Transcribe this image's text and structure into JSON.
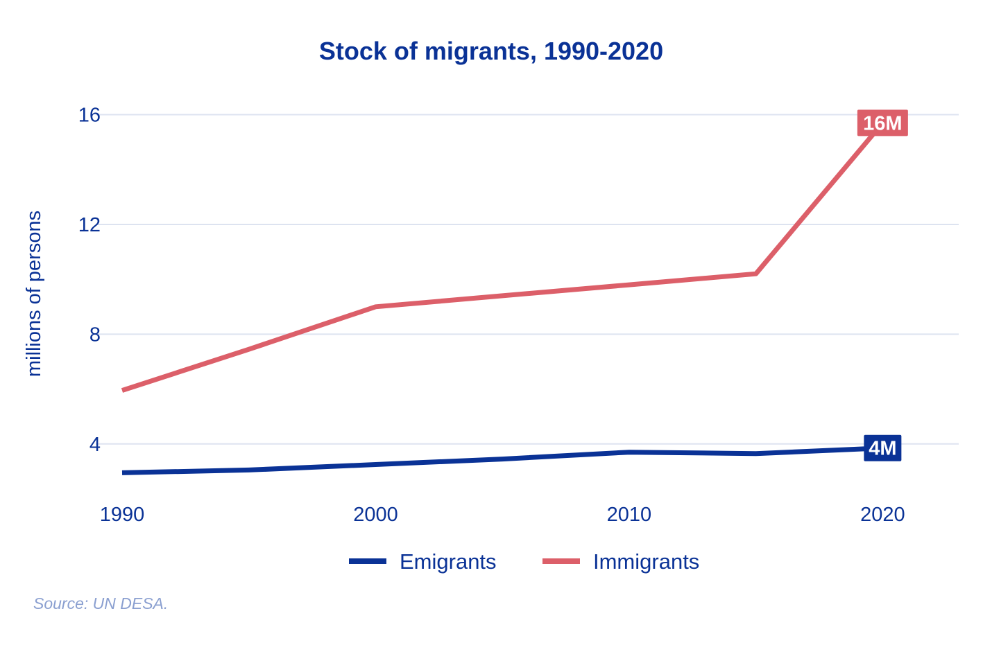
{
  "chart_data": {
    "type": "line",
    "title": "Stock of migrants, 1990-2020",
    "xlabel": "",
    "ylabel": "millions of persons",
    "x": [
      1990,
      1995,
      2000,
      2005,
      2010,
      2015,
      2020
    ],
    "xlim": [
      1990,
      2023
    ],
    "ylim": [
      2,
      17.2
    ],
    "x_ticks": [
      1990,
      2000,
      2010,
      2020
    ],
    "y_ticks": [
      4,
      8,
      12,
      16
    ],
    "grid": "horizontal",
    "legend_position": "bottom",
    "series": [
      {
        "name": "Emigrants",
        "color": "#0a3296",
        "values": [
          2.95,
          3.05,
          3.25,
          3.45,
          3.7,
          3.65,
          3.85
        ],
        "end_label": "4M"
      },
      {
        "name": "Immigrants",
        "color": "#dc5f69",
        "values": [
          5.95,
          7.45,
          9.0,
          9.4,
          9.8,
          10.2,
          15.7
        ],
        "end_label": "16M"
      }
    ],
    "source": "Source: UN DESA."
  }
}
